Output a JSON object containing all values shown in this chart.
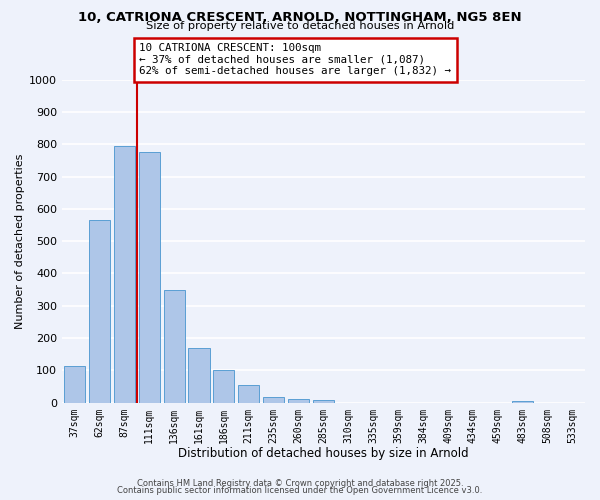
{
  "title": "10, CATRIONA CRESCENT, ARNOLD, NOTTINGHAM, NG5 8EN",
  "subtitle": "Size of property relative to detached houses in Arnold",
  "xlabel": "Distribution of detached houses by size in Arnold",
  "ylabel": "Number of detached properties",
  "bar_labels": [
    "37sqm",
    "62sqm",
    "87sqm",
    "111sqm",
    "136sqm",
    "161sqm",
    "186sqm",
    "211sqm",
    "235sqm",
    "260sqm",
    "285sqm",
    "310sqm",
    "335sqm",
    "359sqm",
    "384sqm",
    "409sqm",
    "434sqm",
    "459sqm",
    "483sqm",
    "508sqm",
    "533sqm"
  ],
  "bar_heights": [
    115,
    565,
    795,
    775,
    350,
    168,
    100,
    55,
    18,
    12,
    8,
    0,
    0,
    0,
    0,
    0,
    0,
    0,
    5,
    0,
    0
  ],
  "bar_color": "#aec6e8",
  "bar_edge_color": "#5a9fd4",
  "vline_color": "#cc0000",
  "vline_index": 2.5,
  "annotation_title": "10 CATRIONA CRESCENT: 100sqm",
  "annotation_line1": "← 37% of detached houses are smaller (1,087)",
  "annotation_line2": "62% of semi-detached houses are larger (1,832) →",
  "annotation_box_color": "#ffffff",
  "annotation_box_edge": "#cc0000",
  "ylim": [
    0,
    1000
  ],
  "yticks": [
    0,
    100,
    200,
    300,
    400,
    500,
    600,
    700,
    800,
    900,
    1000
  ],
  "footer1": "Contains HM Land Registry data © Crown copyright and database right 2025.",
  "footer2": "Contains public sector information licensed under the Open Government Licence v3.0.",
  "bg_color": "#eef2fb",
  "grid_color": "#ffffff"
}
